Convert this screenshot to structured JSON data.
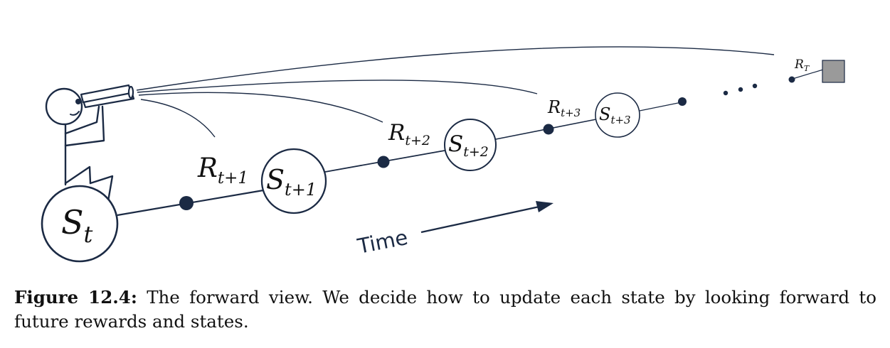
{
  "diagram": {
    "states": [
      {
        "letter": "S",
        "sub": "t"
      },
      {
        "letter": "S",
        "sub": "t+1"
      },
      {
        "letter": "S",
        "sub": "t+2"
      },
      {
        "letter": "S",
        "sub": "t+3"
      }
    ],
    "rewards": [
      {
        "letter": "R",
        "sub": "t+1"
      },
      {
        "letter": "R",
        "sub": "t+2"
      },
      {
        "letter": "R",
        "sub": "t+3"
      },
      {
        "letter": "R",
        "sub": "T"
      }
    ],
    "time_label": "Time",
    "colors": {
      "ink": "#1b2a44",
      "terminal": "#9a9a9a"
    }
  },
  "caption": {
    "label": "Figure 12.4:",
    "text": "The forward view. We decide how to update each state by looking forward to future rewards and states."
  }
}
